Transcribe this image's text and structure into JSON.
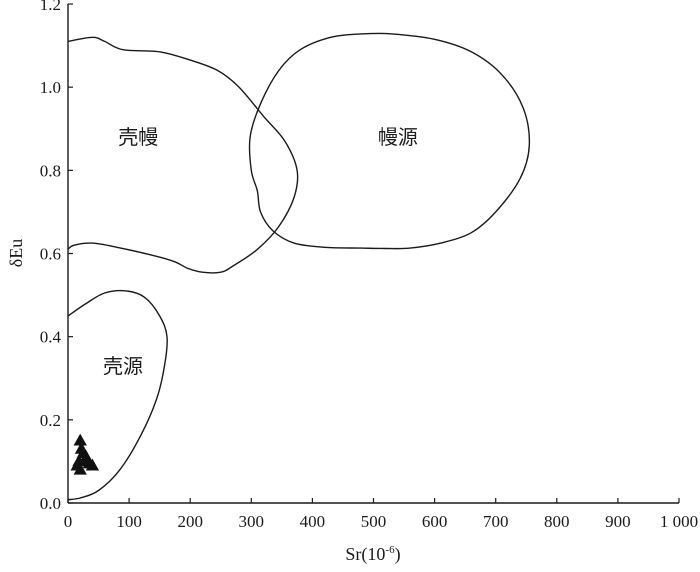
{
  "chart_data": {
    "type": "scatter",
    "title": "",
    "xlabel_prefix": "Sr(10",
    "xlabel_sup": "-6",
    "xlabel_suffix": ")",
    "ylabel": "δEu",
    "xlim": [
      0,
      1000
    ],
    "ylim": [
      0,
      1.2
    ],
    "x_ticks": [
      0,
      100,
      200,
      300,
      400,
      500,
      600,
      700,
      800,
      900,
      1000
    ],
    "x_tick_labels": [
      "0",
      "100",
      "200",
      "300",
      "400",
      "500",
      "600",
      "700",
      "800",
      "900",
      "1 000"
    ],
    "y_ticks": [
      0.0,
      0.2,
      0.4,
      0.6,
      0.8,
      1.0,
      1.2
    ],
    "y_tick_labels": [
      "0.0",
      "0.2",
      "0.4",
      "0.6",
      "0.8",
      "1.0",
      "1.2"
    ],
    "grid": false,
    "marker": "filled-triangle",
    "marker_color": "#111111",
    "fields": [
      {
        "name": "壳幔",
        "label_at": [
          115,
          0.88
        ],
        "outline": [
          [
            0,
            1.11
          ],
          [
            40,
            1.12
          ],
          [
            60,
            1.11
          ],
          [
            90,
            1.09
          ],
          [
            150,
            1.085
          ],
          [
            200,
            1.065
          ],
          [
            245,
            1.04
          ],
          [
            280,
            1.0
          ],
          [
            320,
            0.93
          ],
          [
            355,
            0.87
          ],
          [
            375,
            0.8
          ],
          [
            370,
            0.735
          ],
          [
            345,
            0.665
          ],
          [
            310,
            0.61
          ],
          [
            270,
            0.57
          ],
          [
            250,
            0.555
          ],
          [
            220,
            0.555
          ],
          [
            195,
            0.565
          ],
          [
            175,
            0.58
          ],
          [
            140,
            0.595
          ],
          [
            80,
            0.615
          ],
          [
            40,
            0.625
          ],
          [
            10,
            0.62
          ],
          [
            0,
            0.61
          ]
        ]
      },
      {
        "name": "幔源",
        "label_at": [
          540,
          0.88
        ],
        "outline": [
          [
            310,
            0.75
          ],
          [
            315,
            0.7
          ],
          [
            335,
            0.655
          ],
          [
            370,
            0.625
          ],
          [
            420,
            0.615
          ],
          [
            480,
            0.613
          ],
          [
            520,
            0.612
          ],
          [
            560,
            0.613
          ],
          [
            610,
            0.625
          ],
          [
            660,
            0.65
          ],
          [
            700,
            0.7
          ],
          [
            740,
            0.78
          ],
          [
            755,
            0.86
          ],
          [
            745,
            0.95
          ],
          [
            710,
            1.03
          ],
          [
            660,
            1.085
          ],
          [
            600,
            1.115
          ],
          [
            530,
            1.128
          ],
          [
            480,
            1.128
          ],
          [
            430,
            1.12
          ],
          [
            380,
            1.09
          ],
          [
            345,
            1.04
          ],
          [
            315,
            0.96
          ],
          [
            298,
            0.88
          ],
          [
            300,
            0.8
          ]
        ]
      },
      {
        "name": "壳源",
        "label_at": [
          90,
          0.33
        ],
        "outline": [
          [
            0,
            0.45
          ],
          [
            30,
            0.48
          ],
          [
            60,
            0.505
          ],
          [
            95,
            0.51
          ],
          [
            125,
            0.495
          ],
          [
            150,
            0.45
          ],
          [
            162,
            0.4
          ],
          [
            158,
            0.33
          ],
          [
            145,
            0.25
          ],
          [
            120,
            0.165
          ],
          [
            85,
            0.08
          ],
          [
            50,
            0.03
          ],
          [
            20,
            0.012
          ],
          [
            0,
            0.008
          ]
        ]
      }
    ],
    "points": [
      {
        "x": 20,
        "y": 0.15
      },
      {
        "x": 22,
        "y": 0.13
      },
      {
        "x": 25,
        "y": 0.12
      },
      {
        "x": 30,
        "y": 0.11
      },
      {
        "x": 18,
        "y": 0.1
      },
      {
        "x": 28,
        "y": 0.1
      },
      {
        "x": 40,
        "y": 0.09
      },
      {
        "x": 15,
        "y": 0.09
      },
      {
        "x": 20,
        "y": 0.08
      },
      {
        "x": 35,
        "y": 0.095
      }
    ]
  }
}
